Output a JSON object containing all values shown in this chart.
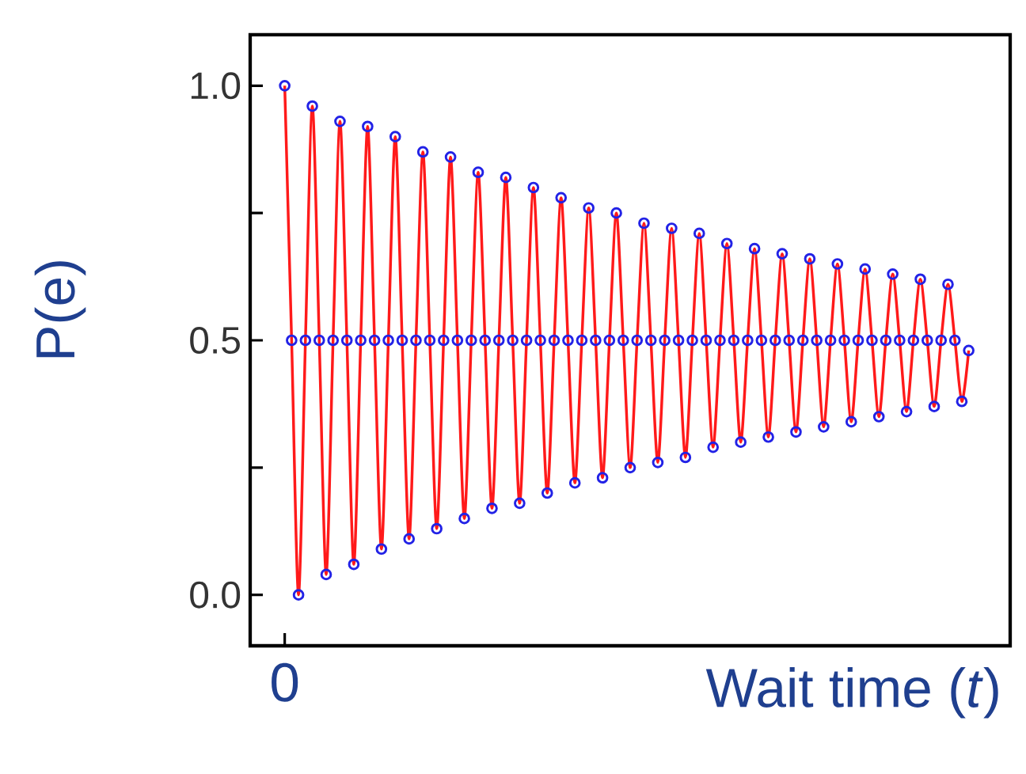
{
  "chart_data": {
    "type": "scatter",
    "xlabel": "Wait time (*t*)",
    "ylabel": "P(e)",
    "categories": [
      "0",
      null,
      null,
      null,
      null,
      null,
      null,
      null,
      null,
      null,
      null,
      null,
      null,
      null,
      null,
      null,
      null,
      null,
      null,
      null,
      null,
      null,
      null,
      null,
      null,
      null,
      null,
      null,
      null,
      null,
      null,
      null,
      null,
      null,
      null,
      null,
      null,
      null,
      null,
      null,
      null,
      null,
      null,
      null,
      null,
      null,
      null,
      null,
      null,
      null,
      null,
      null,
      null,
      null,
      null,
      null,
      null,
      null,
      null,
      null,
      null,
      null,
      null,
      null,
      null,
      null,
      null,
      null,
      null,
      null,
      null,
      null,
      null,
      null,
      null,
      null,
      null,
      null,
      null,
      null,
      null,
      null,
      null,
      null,
      null,
      null,
      null,
      null,
      null,
      null,
      null,
      null,
      null,
      null,
      null,
      null,
      null,
      null,
      null,
      null
    ],
    "ylim": [
      -0.1,
      1.1
    ],
    "yticks": [
      {
        "value": 0,
        "label": "0.0"
      },
      {
        "value": 0.25,
        "label": null
      },
      {
        "value": 0.5,
        "label": "0.5"
      },
      {
        "value": 0.75,
        "label": null
      },
      {
        "value": 1.0,
        "label": "1.0"
      }
    ],
    "grid": false,
    "series": [
      {
        "marker": "circle",
        "color": "#2222e6",
        "values": [
          1.0,
          0.5,
          0.0,
          0.5,
          0.96,
          0.5,
          0.04,
          0.5,
          0.93,
          0.5,
          0.06,
          0.5,
          0.92,
          0.5,
          0.09,
          0.5,
          0.9,
          0.5,
          0.11,
          0.5,
          0.87,
          0.5,
          0.13,
          0.5,
          0.86,
          0.5,
          0.15,
          0.5,
          0.83,
          0.5,
          0.17,
          0.5,
          0.82,
          0.5,
          0.18,
          0.5,
          0.8,
          0.5,
          0.2,
          0.5,
          0.78,
          0.5,
          0.22,
          0.5,
          0.76,
          0.5,
          0.23,
          0.5,
          0.75,
          0.5,
          0.25,
          0.5,
          0.73,
          0.5,
          0.26,
          0.5,
          0.72,
          0.5,
          0.27,
          0.5,
          0.71,
          0.5,
          0.29,
          0.5,
          0.69,
          0.5,
          0.3,
          0.5,
          0.68,
          0.5,
          0.31,
          0.5,
          0.67,
          0.5,
          0.32,
          0.5,
          0.66,
          0.5,
          0.33,
          0.5,
          0.65,
          0.5,
          0.34,
          0.5,
          0.64,
          0.5,
          0.35,
          0.5,
          0.63,
          0.5,
          0.36,
          0.5,
          0.62,
          0.5,
          0.37,
          0.5,
          0.61,
          0.5,
          0.38,
          0.48
        ]
      },
      {
        "type": "line",
        "marker": "none",
        "color": "#ff1a1a",
        "values": [
          1.0,
          0.5,
          0.0,
          0.5,
          0.96,
          0.5,
          0.04,
          0.5,
          0.93,
          0.5,
          0.06,
          0.5,
          0.92,
          0.5,
          0.09,
          0.5,
          0.9,
          0.5,
          0.11,
          0.5,
          0.87,
          0.5,
          0.13,
          0.5,
          0.86,
          0.5,
          0.15,
          0.5,
          0.83,
          0.5,
          0.17,
          0.5,
          0.82,
          0.5,
          0.18,
          0.5,
          0.8,
          0.5,
          0.2,
          0.5,
          0.78,
          0.5,
          0.22,
          0.5,
          0.76,
          0.5,
          0.23,
          0.5,
          0.75,
          0.5,
          0.25,
          0.5,
          0.73,
          0.5,
          0.26,
          0.5,
          0.72,
          0.5,
          0.27,
          0.5,
          0.71,
          0.5,
          0.29,
          0.5,
          0.69,
          0.5,
          0.3,
          0.5,
          0.68,
          0.5,
          0.31,
          0.5,
          0.67,
          0.5,
          0.32,
          0.5,
          0.66,
          0.5,
          0.33,
          0.5,
          0.65,
          0.5,
          0.34,
          0.5,
          0.64,
          0.5,
          0.35,
          0.5,
          0.63,
          0.5,
          0.36,
          0.5,
          0.62,
          0.5,
          0.37,
          0.5,
          0.61,
          0.5,
          0.38,
          0.48
        ]
      }
    ]
  }
}
